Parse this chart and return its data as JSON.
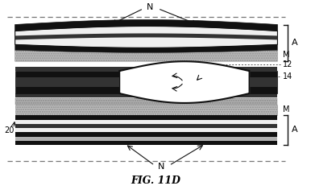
{
  "fig_label": "FIG. 11D",
  "labels": {
    "N_top": "N",
    "N_bot": "N",
    "A_top": "A",
    "A_bot": "A",
    "M_top": "M",
    "M_bot": "M",
    "num_12": "12",
    "num_14": "14",
    "num_20": "20"
  },
  "colors": {
    "black": "#111111",
    "dark_gray": "#333333",
    "medium_gray": "#666666",
    "light_gray": "#cccccc",
    "hatch_gray": "#b0b0b0",
    "white": "#ffffff",
    "bg": "#ffffff",
    "dashed_line": "#555555"
  },
  "fig_width": 3.86,
  "fig_height": 2.36
}
